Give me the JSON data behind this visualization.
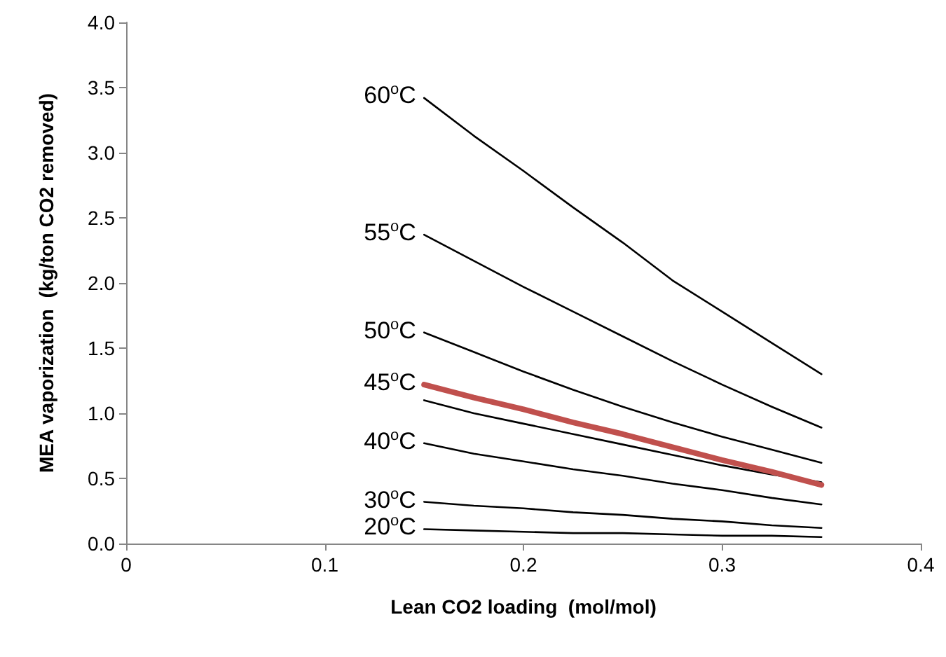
{
  "chart_data": {
    "type": "line",
    "xlabel": "Lean CO2 loading  (mol/mol)",
    "ylabel": "MEA vaporization  (kg/ton CO2 removed)",
    "xlim": [
      0,
      0.4
    ],
    "xticks": [
      0,
      0.1,
      0.2,
      0.3,
      0.4
    ],
    "ylim": [
      0,
      4.0
    ],
    "yticks": [
      {
        "value": 0,
        "label": "0.0"
      },
      {
        "value": 0.5,
        "label": "0.5"
      },
      {
        "value": 1,
        "label": "1.0"
      },
      {
        "value": 1.5,
        "label": "1.5"
      },
      {
        "value": 2,
        "label": "2.0"
      },
      {
        "value": 2.5,
        "label": "2.5"
      },
      {
        "value": 3,
        "label": "3.0"
      },
      {
        "value": 3.5,
        "label": "3.5"
      },
      {
        "value": 4,
        "label": "4.0"
      }
    ],
    "grid": false,
    "legend": false,
    "marker": "none",
    "x": [
      0.15,
      0.175,
      0.2,
      0.225,
      0.25,
      0.275,
      0.3,
      0.325,
      0.35
    ],
    "series": [
      {
        "name": "60$^{o}$C",
        "color": "#000000",
        "values": [
          3.42,
          3.13,
          2.86,
          2.58,
          2.31,
          2.02,
          1.78,
          1.54,
          1.3
        ]
      },
      {
        "name": "55$^{o}$C",
        "color": "#000000",
        "values": [
          2.37,
          2.17,
          1.97,
          1.78,
          1.59,
          1.4,
          1.22,
          1.05,
          0.89
        ]
      },
      {
        "name": "50$^{o}$C",
        "color": "#000000",
        "values": [
          1.62,
          1.47,
          1.32,
          1.18,
          1.05,
          0.93,
          0.82,
          0.72,
          0.62
        ]
      },
      {
        "name": "45$^{o}$C",
        "color": "#c0504d",
        "values": [
          1.22,
          1.12,
          1.03,
          0.93,
          0.84,
          0.74,
          0.64,
          0.55,
          0.45
        ]
      },
      {
        "color": "#000000",
        "values": [
          1.1,
          1.0,
          0.92,
          0.84,
          0.76,
          0.68,
          0.6,
          0.53,
          0.47
        ]
      },
      {
        "name": "40$^{o}$C",
        "color": "#000000",
        "values": [
          0.77,
          0.69,
          0.63,
          0.57,
          0.52,
          0.46,
          0.41,
          0.35,
          0.3
        ]
      },
      {
        "name": "30$^{o}$C",
        "color": "#000000",
        "values": [
          0.32,
          0.29,
          0.27,
          0.24,
          0.22,
          0.19,
          0.17,
          0.14,
          0.12
        ]
      },
      {
        "name": "20$^{o}$C",
        "color": "#000000",
        "values": [
          0.11,
          0.1,
          0.09,
          0.08,
          0.08,
          0.07,
          0.06,
          0.06,
          0.05
        ]
      }
    ]
  }
}
